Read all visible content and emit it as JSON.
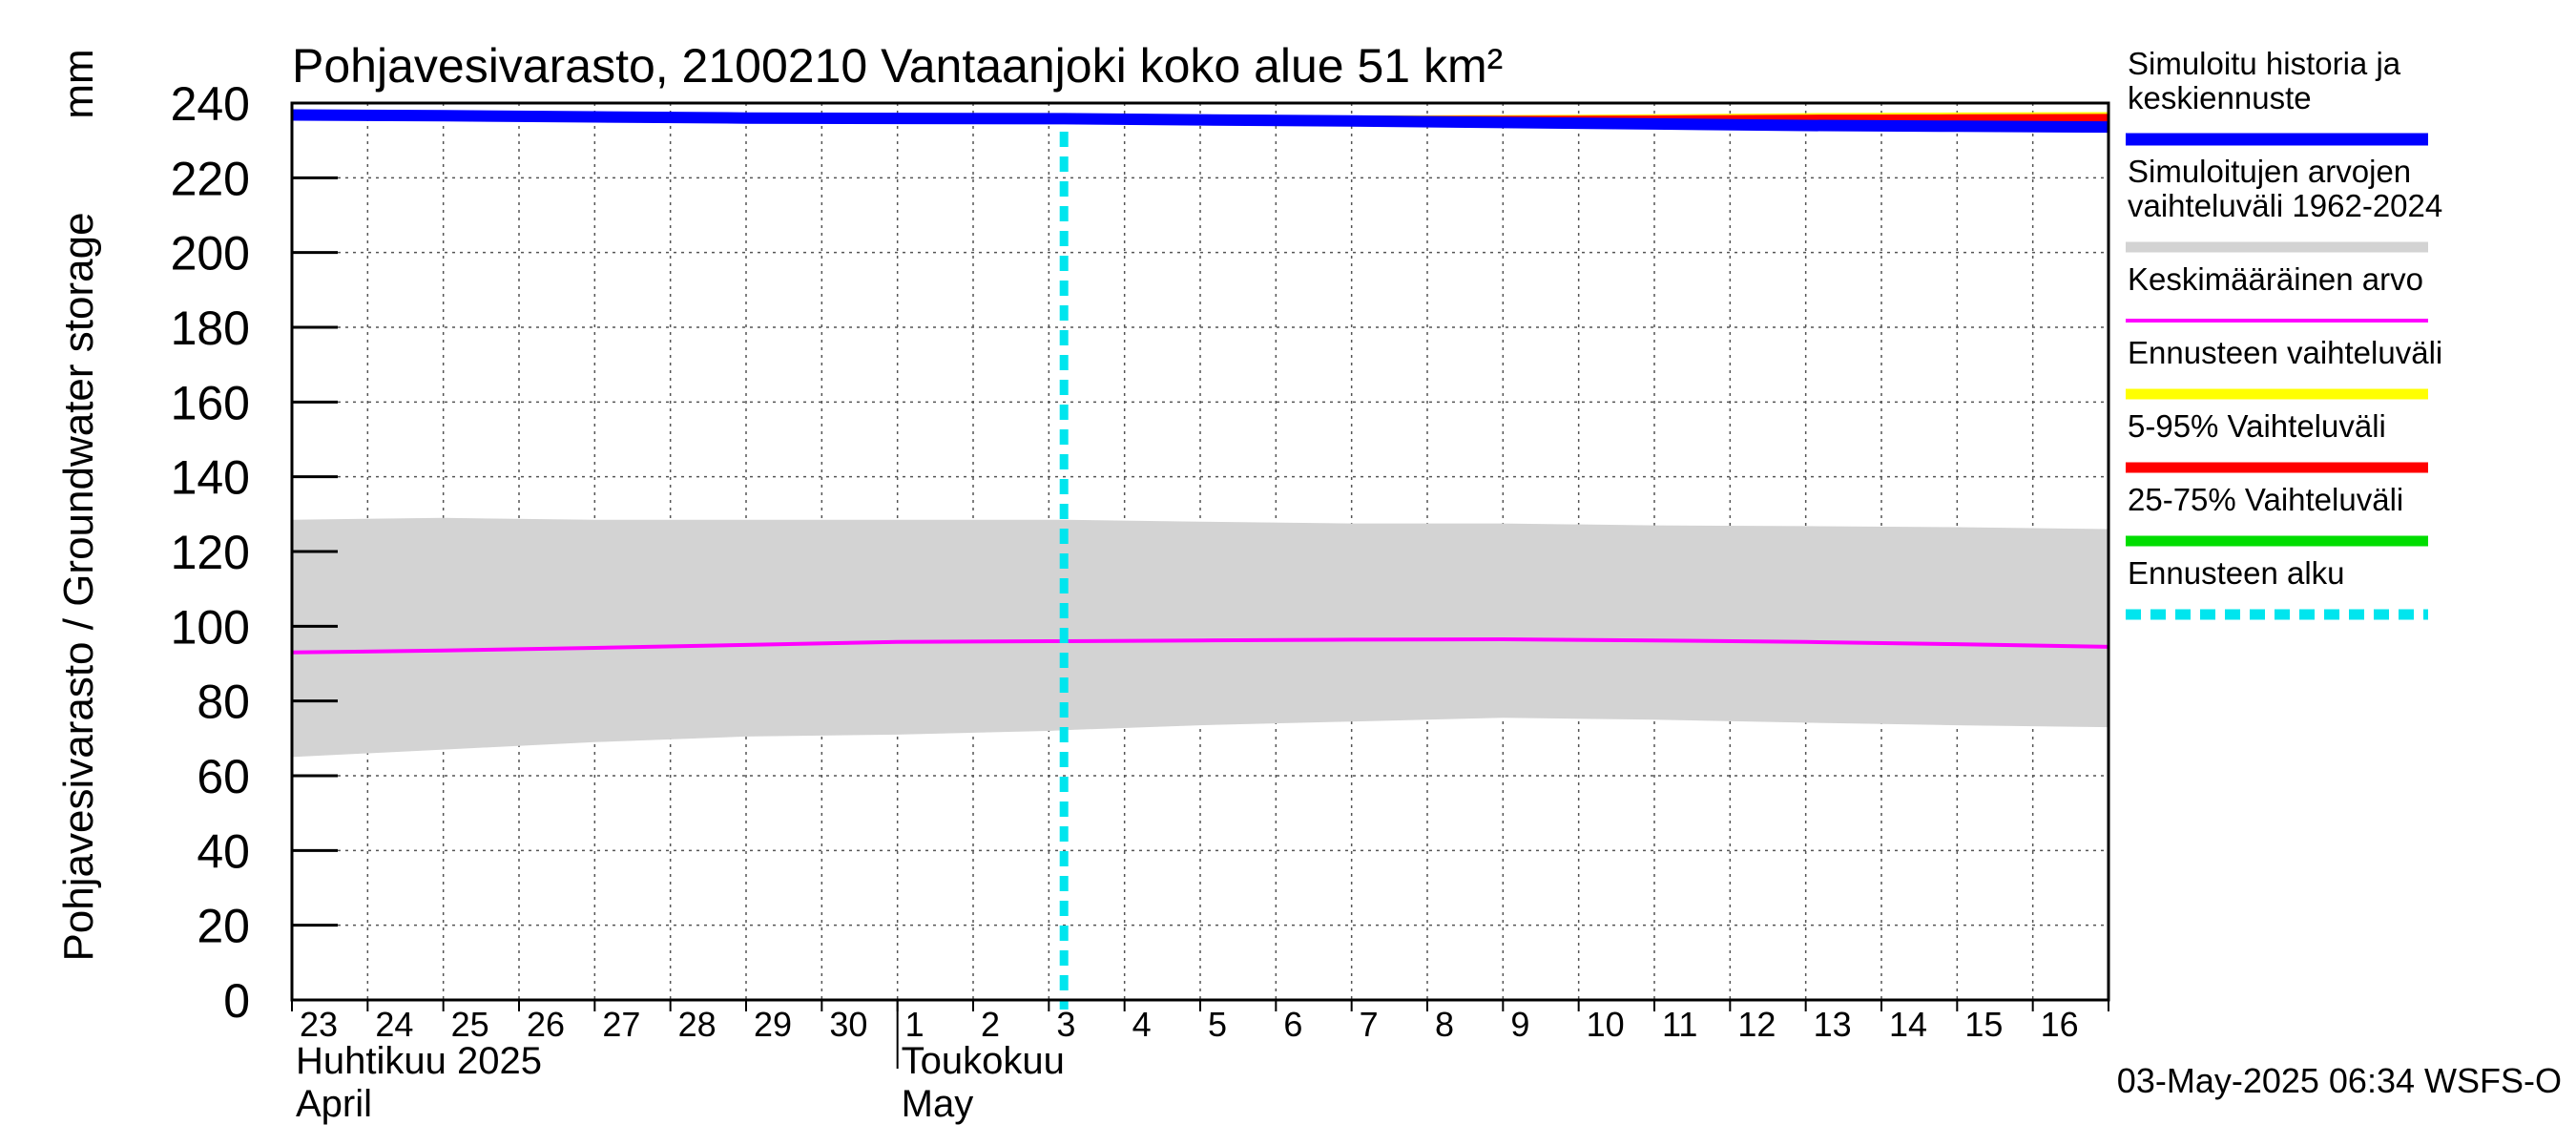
{
  "chart_data": {
    "type": "area",
    "title": "Pohjavesivarasto, 2100210 Vantaanjoki koko alue 51 km²",
    "ylabel": "Pohjavesivarasto / Groundwater storage",
    "yunit": "mm",
    "ylim": [
      0,
      240
    ],
    "yticks": [
      0,
      20,
      40,
      60,
      80,
      100,
      120,
      140,
      160,
      180,
      200,
      220,
      240
    ],
    "xlim": [
      0,
      24
    ],
    "x_day_labels": [
      "23",
      "24",
      "25",
      "26",
      "27",
      "28",
      "29",
      "30",
      "1",
      "2",
      "3",
      "4",
      "5",
      "6",
      "7",
      "8",
      "9",
      "10",
      "11",
      "12",
      "13",
      "14",
      "15",
      "16"
    ],
    "month_labels": [
      {
        "fi": "Huhtikuu  2025",
        "en": "April",
        "start_index": 0
      },
      {
        "fi": "Toukokuu",
        "en": "May",
        "start_index": 8
      }
    ],
    "forecast_start_x": 10.2,
    "x": [
      0,
      2,
      4,
      6,
      8,
      10,
      10.2,
      12,
      14,
      16,
      18,
      20,
      22,
      24
    ],
    "series": [
      {
        "name": "Simuloitujen arvojen vaihteluväli 1962-2024",
        "kind": "band",
        "color": "#d3d3d3",
        "low": [
          65,
          67,
          69,
          70.5,
          71,
          72,
          72.2,
          73.5,
          74.5,
          75.5,
          75,
          74.2,
          73.5,
          73
        ],
        "high": [
          128.5,
          129,
          128.5,
          128.5,
          128.5,
          128.5,
          128.5,
          128,
          127.5,
          127.5,
          127,
          126.8,
          126.5,
          126
        ]
      },
      {
        "name": "Keskimääräinen arvo",
        "kind": "line",
        "color": "#ff00ff",
        "values": [
          93,
          93.5,
          94.2,
          95,
          95.8,
          96,
          96,
          96.2,
          96.4,
          96.5,
          96.2,
          95.8,
          95.2,
          94.5
        ]
      },
      {
        "name": "Ennusteen vaihteluväli",
        "kind": "forecast_band",
        "color": "#ffff00",
        "x": [
          10.2,
          12,
          14,
          16,
          18,
          20,
          22,
          24
        ],
        "low": [
          236,
          235.5,
          235.2,
          234.5,
          234,
          233.5,
          233.2,
          233
        ],
        "high": [
          236.2,
          236.3,
          236.3,
          236.4,
          236.6,
          236.9,
          237.1,
          237.2
        ]
      },
      {
        "name": "5-95% Vaihteluväli",
        "kind": "forecast_band",
        "color": "#ff0000",
        "x": [
          10.2,
          12,
          14,
          16,
          18,
          20,
          22,
          24
        ],
        "low": [
          236,
          235.4,
          235,
          234.3,
          233.8,
          233.3,
          233,
          232.8
        ],
        "high": [
          236.2,
          236.2,
          236.2,
          236.2,
          236.3,
          236.5,
          236.6,
          236.7
        ]
      },
      {
        "name": "25-75% Vaihteluväli",
        "kind": "forecast_band",
        "color": "#00dd00",
        "x": [
          10.2,
          12,
          14,
          16,
          18,
          20,
          22,
          24
        ],
        "low": [
          236,
          235.3,
          234.9,
          234.2,
          233.7,
          233.2,
          232.9,
          232.7
        ],
        "high": [
          236.1,
          235.9,
          235.6,
          235.2,
          234.8,
          234.4,
          234.1,
          234
        ]
      },
      {
        "name": "Simuloitu historia ja keskiennuste",
        "kind": "line",
        "color": "#0000ff",
        "values": [
          236.8,
          236.6,
          236.3,
          236,
          235.9,
          235.8,
          235.8,
          235.5,
          235.2,
          234.8,
          234.4,
          234,
          233.8,
          233.6
        ]
      }
    ],
    "legend": {
      "placement": "right",
      "entries": [
        {
          "label_lines": [
            "Simuloitu historia ja",
            "keskiennuste"
          ],
          "color": "#0000ff",
          "style": "thick"
        },
        {
          "label_lines": [
            "Simuloitujen arvojen",
            "vaihteluväli 1962-2024"
          ],
          "color": "#d3d3d3",
          "style": "solid"
        },
        {
          "label_lines": [
            "Keskimääräinen arvo"
          ],
          "color": "#ff00ff",
          "style": "thin"
        },
        {
          "label_lines": [
            "Ennusteen vaihteluväli"
          ],
          "color": "#ffff00",
          "style": "solid"
        },
        {
          "label_lines": [
            "5-95% Vaihteluväli"
          ],
          "color": "#ff0000",
          "style": "solid"
        },
        {
          "label_lines": [
            "25-75% Vaihteluväli"
          ],
          "color": "#00dd00",
          "style": "solid"
        },
        {
          "label_lines": [
            "Ennusteen alku"
          ],
          "color": "#00e5ee",
          "style": "dashed"
        }
      ]
    },
    "footer": "03-May-2025 06:34 WSFS-O"
  }
}
